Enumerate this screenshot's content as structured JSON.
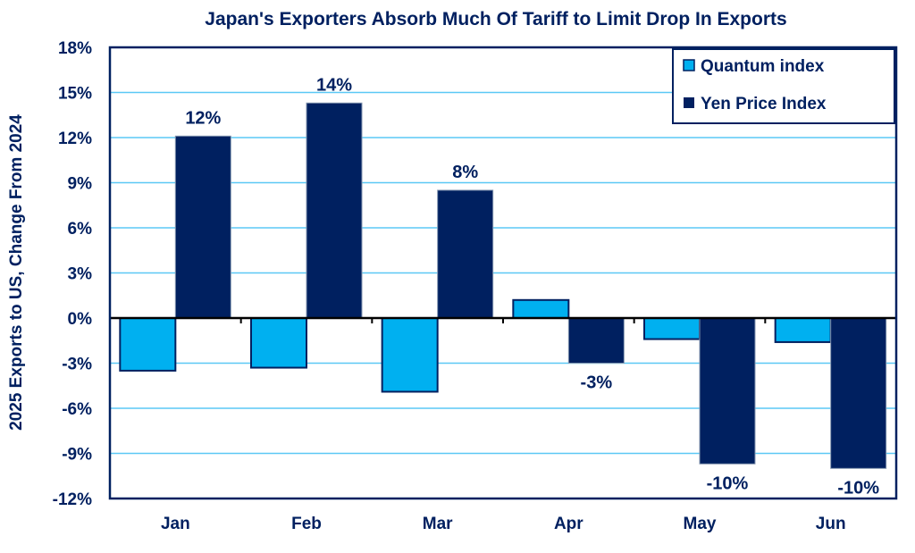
{
  "chart_data": {
    "type": "bar",
    "title": "Japan's Exporters Absorb Much Of Tariff to Limit Drop In Exports",
    "xlabel": "",
    "ylabel": "2025 Exports to US, Change From 2024",
    "ylim": [
      -12,
      18
    ],
    "yticks": [
      18,
      15,
      12,
      9,
      6,
      3,
      0,
      -3,
      -6,
      -9,
      -12
    ],
    "ytick_labels": [
      "18%",
      "15%",
      "12%",
      "9%",
      "6%",
      "3%",
      "0%",
      "-3%",
      "-6%",
      "-9%",
      "-12%"
    ],
    "grid": true,
    "legend_position": "top-right",
    "categories": [
      "Jan",
      "Feb",
      "Mar",
      "Apr",
      "May",
      "Jun"
    ],
    "series": [
      {
        "name": "Quantum index",
        "color": "#00B0F0",
        "values": [
          -3.5,
          -3.3,
          -4.9,
          1.2,
          -1.4,
          -1.6
        ],
        "data_labels": []
      },
      {
        "name": "Yen Price Index",
        "color": "#002060",
        "values": [
          12.1,
          14.3,
          8.5,
          -3.0,
          -9.7,
          -10.0
        ],
        "data_labels": [
          "12%",
          "14%",
          "8%",
          "-3%",
          "-10%",
          "-10%"
        ]
      }
    ]
  }
}
